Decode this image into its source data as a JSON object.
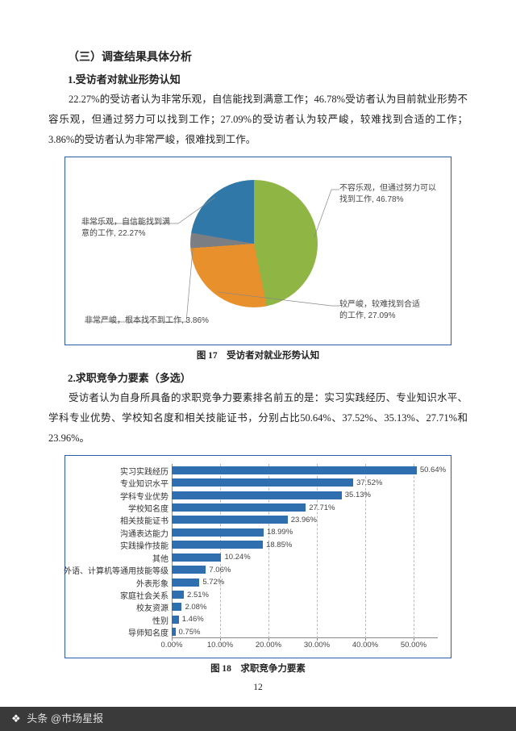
{
  "section_heading": "（三）调查结果具体分析",
  "sub1_heading": "1.受访者对就业形势认知",
  "para1": "22.27%的受访者认为非常乐观，自信能找到满意工作；46.78%受访者认为目前就业形势不容乐观，但通过努力可以找到工作；27.09%的受访者认为较严峻，较难找到合适的工作； 3.86%的受访者认为非常严峻，很难找到工作。",
  "pie": {
    "caption": "图 17　受访者对就业形势认知",
    "background": "#ffffff",
    "slices": [
      {
        "label_l1": "不容乐观，但通过努力可以",
        "label_l2": "找到工作, 46.78%",
        "value": 46.78,
        "color": "#8fb545"
      },
      {
        "label_l1": "较严峻，较难找到合适",
        "label_l2": "的工作, 27.09%",
        "value": 27.09,
        "color": "#e8912c"
      },
      {
        "label_l1": "非常严峻，根本找不到工作, 3.86%",
        "label_l2": "",
        "value": 3.86,
        "color": "#7b7f84"
      },
      {
        "label_l1": "非常乐观，自信能找到满",
        "label_l2": "意的工作, 22.27%",
        "value": 22.27,
        "color": "#3078a7"
      }
    ]
  },
  "sub2_heading": "2.求职竞争力要素（多选）",
  "para2": "受访者认为自身所具备的求职竞争力要素排名前五的是：实习实践经历、专业知识水平、学科专业优势、学校知名度和相关技能证书，分别占比50.64%、37.52%、35.13%、27.71%和23.96%。",
  "bar": {
    "caption": "图 18　求职竞争力要素",
    "bar_color": "#2f6fb0",
    "grid_color": "#bbbbbb",
    "xmax": 55.0,
    "xticks": [
      0,
      10,
      20,
      30,
      40,
      50
    ],
    "xtick_labels": [
      "0.00%",
      "10.00%",
      "20.00%",
      "30.00%",
      "40.00%",
      "50.00%"
    ],
    "items": [
      {
        "label": "实习实践经历",
        "value": 50.64,
        "display": "50.64%"
      },
      {
        "label": "专业知识水平",
        "value": 37.52,
        "display": "37.52%"
      },
      {
        "label": "学科专业优势",
        "value": 35.13,
        "display": "35.13%"
      },
      {
        "label": "学校知名度",
        "value": 27.71,
        "display": "27.71%"
      },
      {
        "label": "相关技能证书",
        "value": 23.96,
        "display": "23.96%"
      },
      {
        "label": "沟通表达能力",
        "value": 18.99,
        "display": "18.99%"
      },
      {
        "label": "实践操作技能",
        "value": 18.85,
        "display": "18.85%"
      },
      {
        "label": "其他",
        "value": 10.24,
        "display": "10.24%"
      },
      {
        "label": "外语、计算机等通用技能等级",
        "value": 7.06,
        "display": "7.06%"
      },
      {
        "label": "外表形象",
        "value": 5.72,
        "display": "5.72%"
      },
      {
        "label": "家庭社会关系",
        "value": 2.51,
        "display": "2.51%"
      },
      {
        "label": "校友资源",
        "value": 2.08,
        "display": "2.08%"
      },
      {
        "label": "性别",
        "value": 1.46,
        "display": "1.46%"
      },
      {
        "label": "导师知名度",
        "value": 0.75,
        "display": "0.75%"
      }
    ]
  },
  "page_number": "12",
  "footer_text": "头条 @市场星报"
}
